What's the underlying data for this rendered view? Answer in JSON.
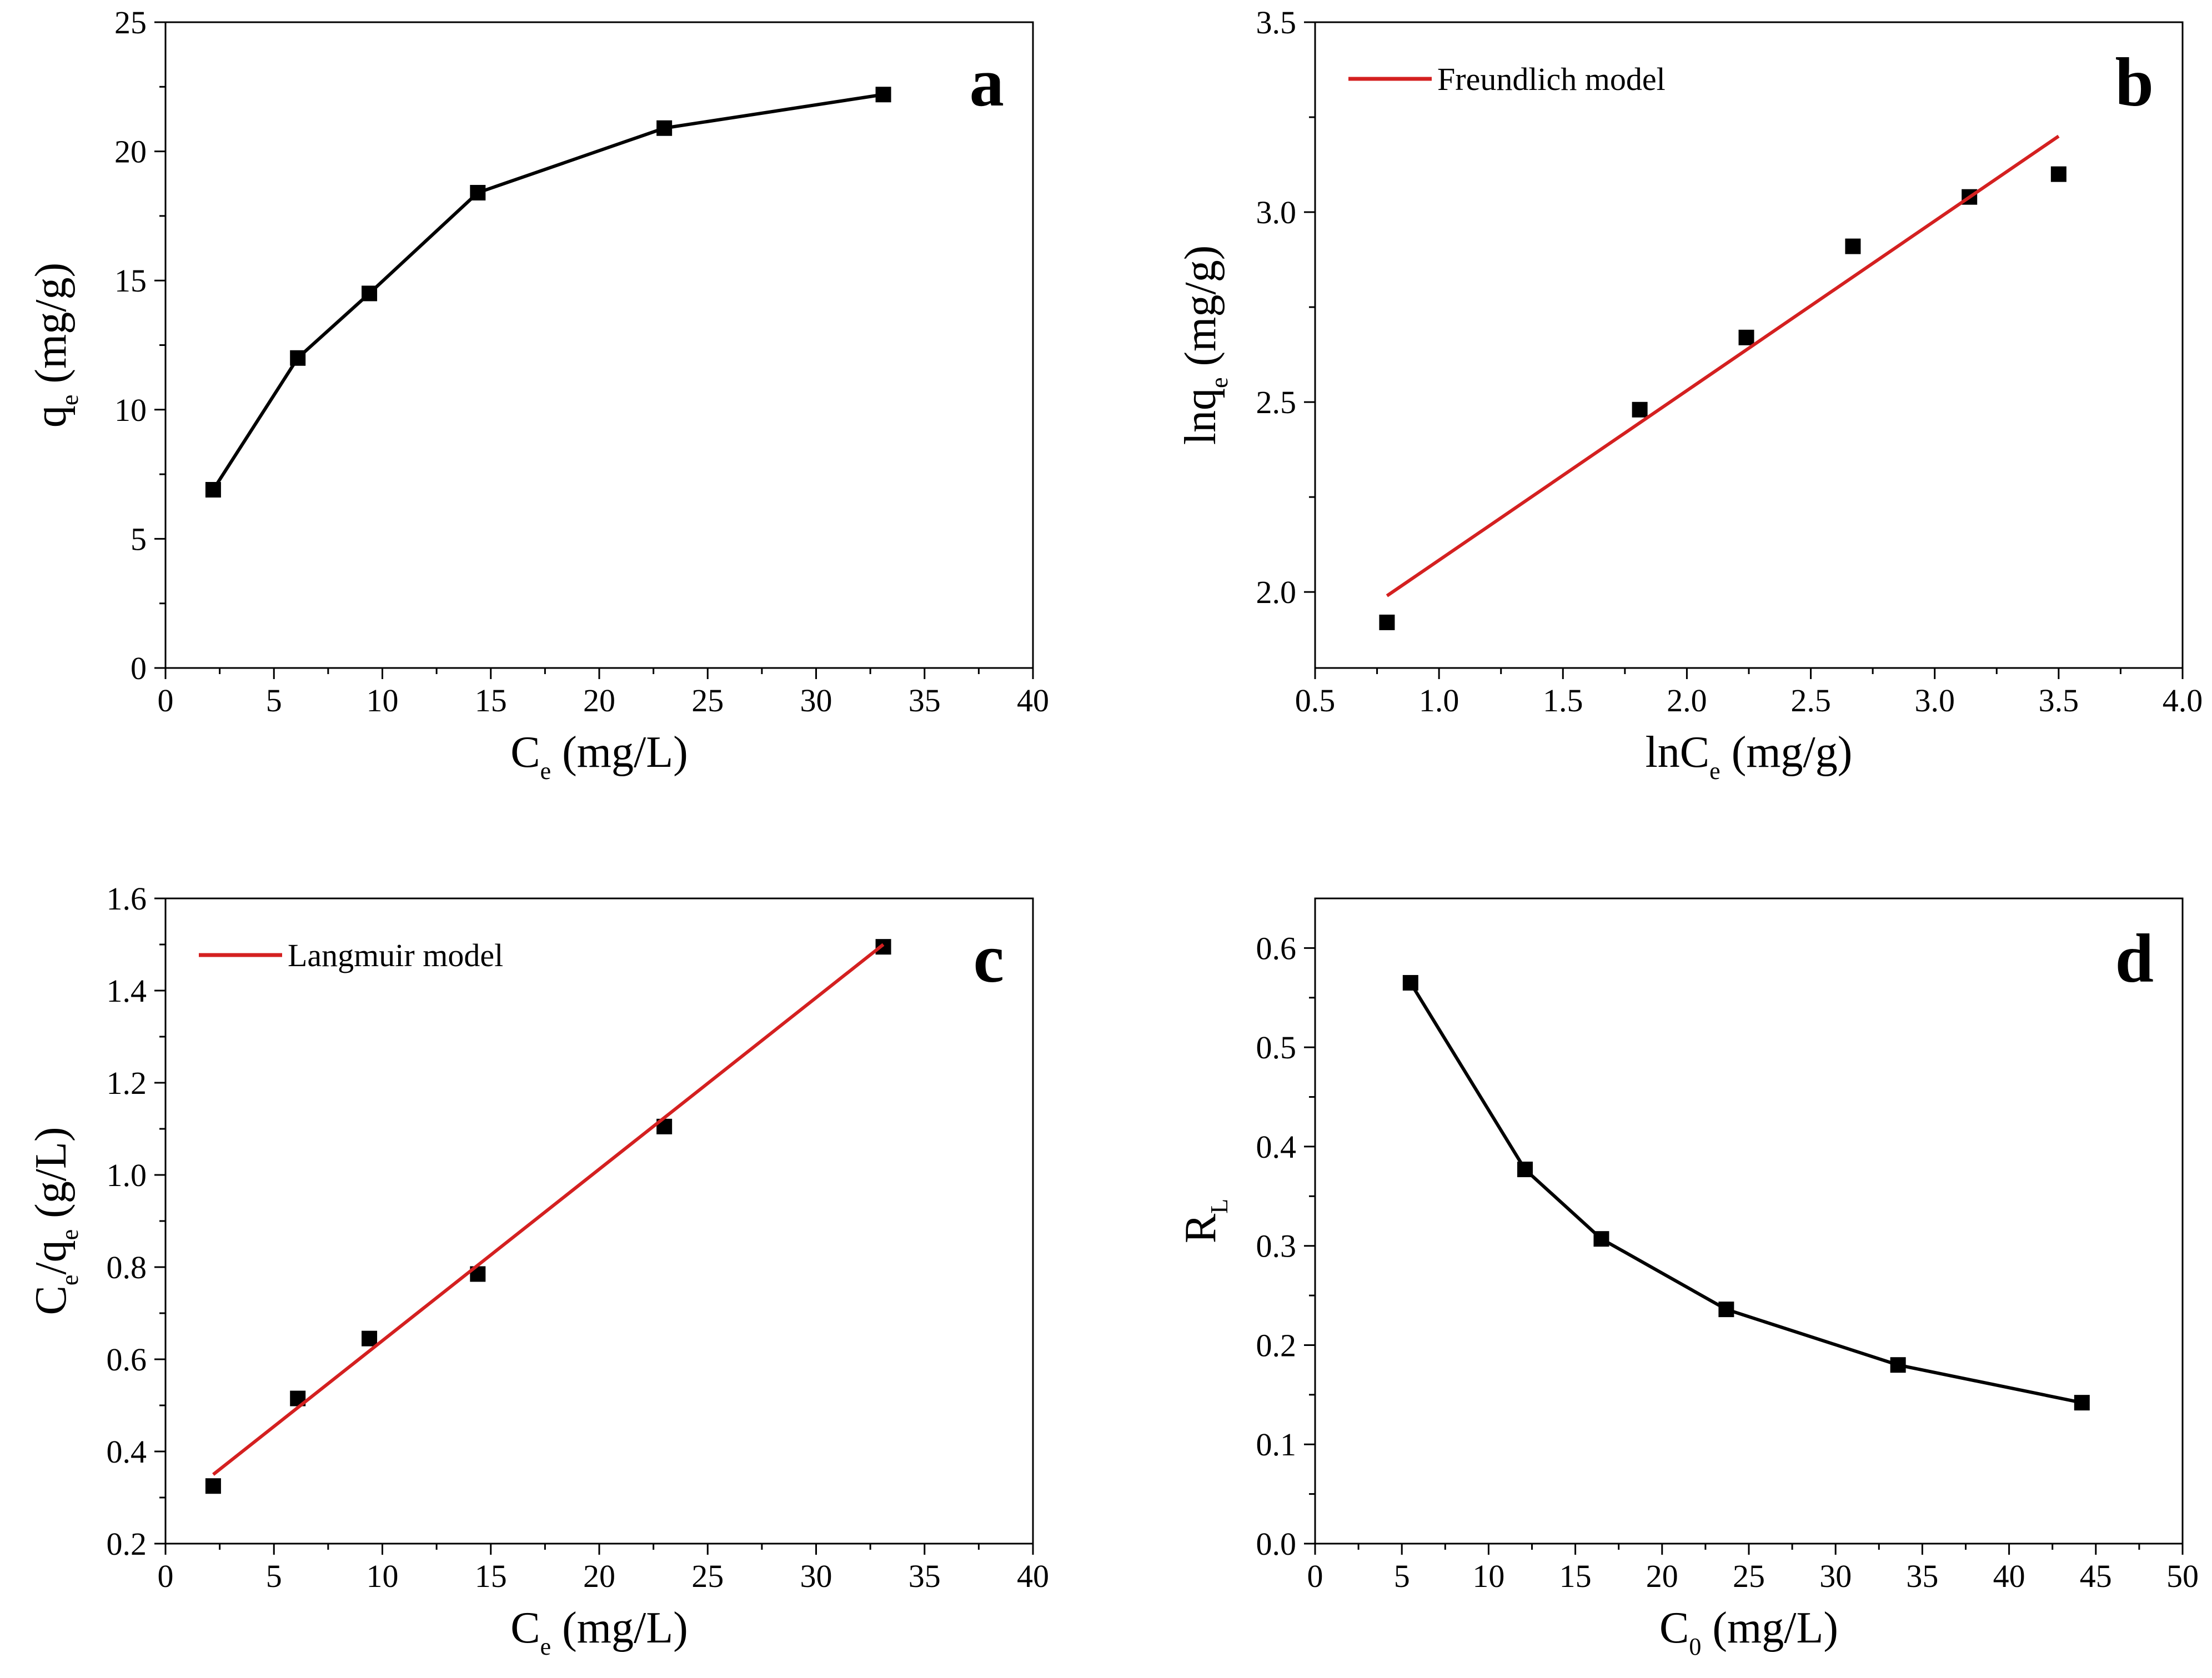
{
  "figure": {
    "colors": {
      "data": "#000000",
      "fit": "#d42020",
      "frame": "#000000",
      "background": "#ffffff"
    }
  },
  "chart_data": [
    {
      "type": "line",
      "panel": "a",
      "title": "",
      "xlabel": {
        "main": "C",
        "sub": "e",
        "rest": " (mg/L)"
      },
      "ylabel": {
        "main": "q",
        "sub": "e",
        "rest": " (mg/g)"
      },
      "xlim": [
        0,
        40
      ],
      "ylim": [
        0,
        25
      ],
      "xticks": [
        0,
        5,
        10,
        15,
        20,
        25,
        30,
        35,
        40
      ],
      "yticks": [
        0,
        5,
        10,
        15,
        20,
        25
      ],
      "xtick_labels": [
        "0",
        "5",
        "10",
        "15",
        "20",
        "25",
        "30",
        "35",
        "40"
      ],
      "ytick_labels": [
        "0",
        "5",
        "10",
        "15",
        "20",
        "25"
      ],
      "series": [
        {
          "name": "data",
          "style": "line-markers",
          "x": [
            2.2,
            6.1,
            9.4,
            14.4,
            23.0,
            33.1
          ],
          "y": [
            6.9,
            12.0,
            14.5,
            18.4,
            20.9,
            22.2
          ]
        }
      ],
      "legend": null
    },
    {
      "type": "scatter",
      "panel": "b",
      "title": "",
      "xlabel": {
        "main": "lnC",
        "sub": "e",
        "rest": " (mg/g)"
      },
      "ylabel": {
        "main": "lnq",
        "sub": "e",
        "rest": " (mg/g)"
      },
      "xlim": [
        0.5,
        4.0
      ],
      "ylim": [
        1.8,
        3.5
      ],
      "xticks": [
        0.5,
        1.0,
        1.5,
        2.0,
        2.5,
        3.0,
        3.5,
        4.0
      ],
      "yticks": [
        2.0,
        2.5,
        3.0,
        3.5
      ],
      "xtick_labels": [
        "0.5",
        "1.0",
        "1.5",
        "2.0",
        "2.5",
        "3.0",
        "3.5",
        "4.0"
      ],
      "ytick_labels": [
        "2.0",
        "2.5",
        "3.0",
        "3.5"
      ],
      "series": [
        {
          "name": "data",
          "style": "markers",
          "x": [
            0.79,
            1.81,
            2.24,
            2.67,
            3.14,
            3.5
          ],
          "y": [
            1.92,
            2.48,
            2.67,
            2.91,
            3.04,
            3.1
          ]
        },
        {
          "name": "Freundlich model",
          "style": "fit-line",
          "x": [
            0.79,
            3.5
          ],
          "y": [
            1.99,
            3.2
          ]
        }
      ],
      "legend": {
        "label": "Freundlich model",
        "position": "top-left"
      }
    },
    {
      "type": "scatter",
      "panel": "c",
      "title": "",
      "xlabel": {
        "main": "C",
        "sub": "e",
        "rest": " (mg/L)"
      },
      "ylabel": {
        "main": "C",
        "sub": "e",
        "rest": "/q",
        "sub2": "e",
        "rest2": " (g/L)"
      },
      "xlim": [
        0,
        40
      ],
      "ylim": [
        0.2,
        1.6
      ],
      "xticks": [
        0,
        5,
        10,
        15,
        20,
        25,
        30,
        35,
        40
      ],
      "yticks": [
        0.2,
        0.4,
        0.6,
        0.8,
        1.0,
        1.2,
        1.4,
        1.6
      ],
      "xtick_labels": [
        "0",
        "5",
        "10",
        "15",
        "20",
        "25",
        "30",
        "35",
        "40"
      ],
      "ytick_labels": [
        "0.2",
        "0.4",
        "0.6",
        "0.8",
        "1.0",
        "1.2",
        "1.4",
        "1.6"
      ],
      "series": [
        {
          "name": "data",
          "style": "markers",
          "x": [
            2.2,
            6.1,
            9.4,
            14.4,
            23.0,
            33.1
          ],
          "y": [
            0.325,
            0.515,
            0.645,
            0.785,
            1.105,
            1.495
          ]
        },
        {
          "name": "Langmuir model",
          "style": "fit-line",
          "x": [
            2.2,
            33.1
          ],
          "y": [
            0.35,
            1.5
          ]
        }
      ],
      "legend": {
        "label": "Langmuir model",
        "position": "top-left"
      }
    },
    {
      "type": "line",
      "panel": "d",
      "title": "",
      "xlabel": {
        "main": "C",
        "sub": "0",
        "rest": " (mg/L)"
      },
      "ylabel": {
        "main": "R",
        "sub": "L",
        "rest": ""
      },
      "xlim": [
        0,
        50
      ],
      "ylim": [
        0.0,
        0.65
      ],
      "xticks": [
        0,
        5,
        10,
        15,
        20,
        25,
        30,
        35,
        40,
        45,
        50
      ],
      "yticks": [
        0.0,
        0.1,
        0.2,
        0.3,
        0.4,
        0.5,
        0.6
      ],
      "xtick_labels": [
        "0",
        "5",
        "10",
        "15",
        "20",
        "25",
        "30",
        "35",
        "40",
        "45",
        "50"
      ],
      "ytick_labels": [
        "0.0",
        "0.1",
        "0.2",
        "0.3",
        "0.4",
        "0.5",
        "0.6"
      ],
      "series": [
        {
          "name": "data",
          "style": "line-markers",
          "x": [
            5.5,
            12.1,
            16.5,
            23.7,
            33.6,
            44.2
          ],
          "y": [
            0.565,
            0.377,
            0.307,
            0.236,
            0.18,
            0.142
          ]
        }
      ],
      "legend": null
    }
  ]
}
